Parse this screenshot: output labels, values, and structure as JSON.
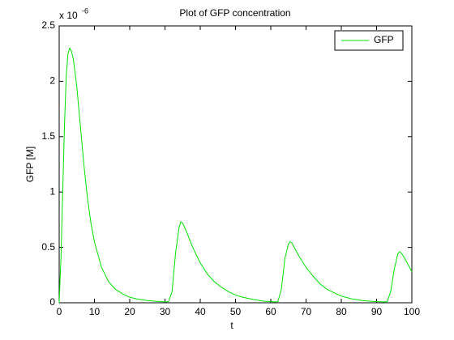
{
  "chart_data": {
    "type": "line",
    "title": "Plot of GFP concentration",
    "x_label": "t",
    "y_label": "GFP [M]",
    "y_multiplier": "x 10",
    "y_exponent": "-6",
    "x": [
      0,
      0.5,
      1,
      1.5,
      2,
      2.5,
      3,
      3.5,
      4,
      5,
      6,
      7,
      8,
      9,
      10,
      12,
      14,
      16,
      18,
      20,
      22,
      25,
      28,
      30,
      31,
      32,
      33,
      34,
      34.5,
      35,
      36,
      37,
      38,
      40,
      42,
      44,
      46,
      48,
      50,
      52,
      55,
      58,
      61,
      62,
      63,
      64,
      65,
      65.5,
      66,
      67,
      68,
      70,
      72,
      74,
      76,
      78,
      80,
      83,
      86,
      89,
      92,
      93,
      94,
      95,
      96,
      96.5,
      97,
      98,
      99,
      100
    ],
    "series": [
      {
        "name": "GFP",
        "color": "#00e000",
        "values": [
          0,
          0.4,
          1.0,
          1.6,
          2.05,
          2.25,
          2.3,
          2.27,
          2.2,
          1.95,
          1.6,
          1.25,
          0.95,
          0.72,
          0.55,
          0.32,
          0.19,
          0.12,
          0.08,
          0.05,
          0.035,
          0.02,
          0.012,
          0.008,
          0.01,
          0.1,
          0.45,
          0.68,
          0.73,
          0.72,
          0.65,
          0.57,
          0.49,
          0.36,
          0.26,
          0.19,
          0.14,
          0.1,
          0.07,
          0.05,
          0.03,
          0.015,
          0.008,
          0.01,
          0.12,
          0.4,
          0.53,
          0.55,
          0.54,
          0.48,
          0.42,
          0.32,
          0.24,
          0.17,
          0.12,
          0.09,
          0.06,
          0.035,
          0.02,
          0.012,
          0.008,
          0.01,
          0.1,
          0.3,
          0.44,
          0.46,
          0.45,
          0.4,
          0.34,
          0.28
        ]
      }
    ],
    "xlim": [
      0,
      100
    ],
    "xticks": [
      0,
      10,
      20,
      30,
      40,
      50,
      60,
      70,
      80,
      90,
      100
    ],
    "ylim": [
      0,
      2.5
    ],
    "yticks": [
      0,
      0.5,
      1,
      1.5,
      2,
      2.5
    ],
    "legend": "top-right"
  }
}
